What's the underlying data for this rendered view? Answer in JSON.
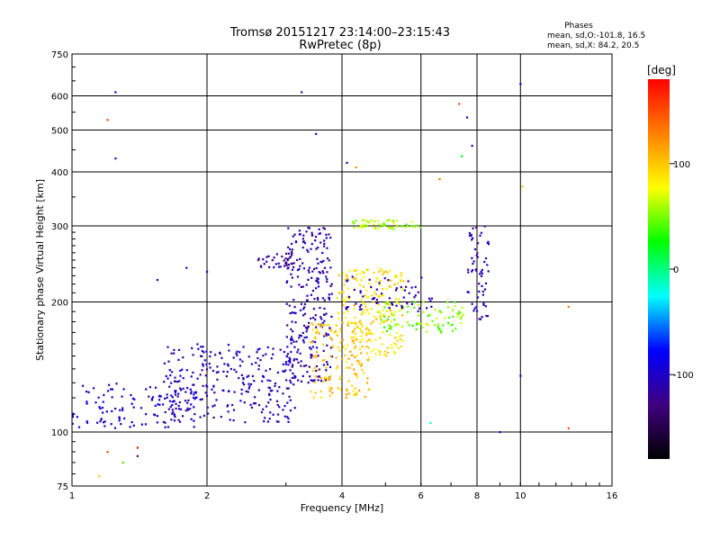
{
  "chart_data": {
    "type": "scatter",
    "title": "Tromsø 20151217 23:14:00–23:15:43",
    "subtitle": "RwPretec (8p)",
    "xlabel": "Frequency [MHz]",
    "ylabel": "Stationary phase Virtual Height [km]",
    "x_scale": "log",
    "y_scale": "log",
    "xlim": [
      1,
      16
    ],
    "ylim": [
      75,
      750
    ],
    "x_ticks": [
      "1",
      "2",
      "4",
      "6",
      "8",
      "10",
      "16"
    ],
    "y_ticks": [
      "75",
      "100",
      "200",
      "300",
      "400",
      "500",
      "600",
      "750"
    ],
    "grid": true,
    "stats": {
      "heading": "Phases",
      "line1": "mean, sd,O:-101.8, 16.5",
      "line2": "mean, sd,X:  84.2, 20.5"
    },
    "colorbar": {
      "label": "[deg]",
      "range": [
        -180,
        180
      ],
      "ticks": [
        "100",
        "0",
        "-100"
      ],
      "colors": [
        "#ff0000",
        "#ff8000",
        "#ffff00",
        "#00ff00",
        "#00ffff",
        "#0000ff",
        "#400080",
        "#000000"
      ]
    },
    "clusters": [
      {
        "f_min": 1.0,
        "f_max": 1.9,
        "h_min": 102,
        "h_max": 130,
        "n": 120,
        "phase": -100
      },
      {
        "f_min": 1.6,
        "f_max": 3.2,
        "h_min": 105,
        "h_max": 160,
        "n": 260,
        "phase": -105
      },
      {
        "f_min": 2.6,
        "f_max": 3.1,
        "h_min": 240,
        "h_max": 260,
        "n": 30,
        "phase": -120
      },
      {
        "f_min": 3.0,
        "f_max": 3.8,
        "h_min": 130,
        "h_max": 300,
        "n": 260,
        "phase": -110
      },
      {
        "f_min": 3.4,
        "f_max": 4.6,
        "h_min": 120,
        "h_max": 180,
        "n": 150,
        "phase": 100
      },
      {
        "f_min": 3.9,
        "f_max": 5.5,
        "h_min": 150,
        "h_max": 240,
        "n": 200,
        "phase": 90
      },
      {
        "f_min": 4.2,
        "f_max": 6.0,
        "h_min": 295,
        "h_max": 310,
        "n": 60,
        "phase": 60
      },
      {
        "f_min": 4.8,
        "f_max": 7.5,
        "h_min": 170,
        "h_max": 200,
        "n": 90,
        "phase": 50
      },
      {
        "f_min": 7.6,
        "f_max": 8.5,
        "h_min": 180,
        "h_max": 300,
        "n": 60,
        "phase": -110
      },
      {
        "f_min": 4.0,
        "f_max": 6.5,
        "h_min": 190,
        "h_max": 230,
        "n": 60,
        "phase": -110
      }
    ],
    "outliers": [
      {
        "f": 1.25,
        "h": 612,
        "phase": -100
      },
      {
        "f": 1.25,
        "h": 430,
        "phase": -100
      },
      {
        "f": 1.2,
        "h": 528,
        "phase": 150
      },
      {
        "f": 3.25,
        "h": 612,
        "phase": -130
      },
      {
        "f": 3.5,
        "h": 490,
        "phase": -110
      },
      {
        "f": 4.1,
        "h": 420,
        "phase": -110
      },
      {
        "f": 4.3,
        "h": 410,
        "phase": 120
      },
      {
        "f": 6.6,
        "h": 385,
        "phase": 130
      },
      {
        "f": 7.3,
        "h": 575,
        "phase": 150
      },
      {
        "f": 7.6,
        "h": 535,
        "phase": -110
      },
      {
        "f": 7.8,
        "h": 460,
        "phase": -110
      },
      {
        "f": 7.4,
        "h": 435,
        "phase": 20
      },
      {
        "f": 10.0,
        "h": 640,
        "phase": -90
      },
      {
        "f": 10.1,
        "h": 370,
        "phase": 100
      },
      {
        "f": 10.0,
        "h": 135,
        "phase": -120
      },
      {
        "f": 9.0,
        "h": 100,
        "phase": -100
      },
      {
        "f": 6.3,
        "h": 105,
        "phase": -20
      },
      {
        "f": 12.8,
        "h": 102,
        "phase": 150
      },
      {
        "f": 12.8,
        "h": 195,
        "phase": 130
      },
      {
        "f": 1.2,
        "h": 90,
        "phase": 150
      },
      {
        "f": 1.4,
        "h": 92,
        "phase": 170
      },
      {
        "f": 1.15,
        "h": 79,
        "phase": 100
      },
      {
        "f": 1.3,
        "h": 85,
        "phase": 40
      },
      {
        "f": 1.4,
        "h": 88,
        "phase": -130
      },
      {
        "f": 1.55,
        "h": 225,
        "phase": -110
      },
      {
        "f": 1.8,
        "h": 240,
        "phase": -110
      },
      {
        "f": 2.0,
        "h": 235,
        "phase": -110
      }
    ]
  }
}
